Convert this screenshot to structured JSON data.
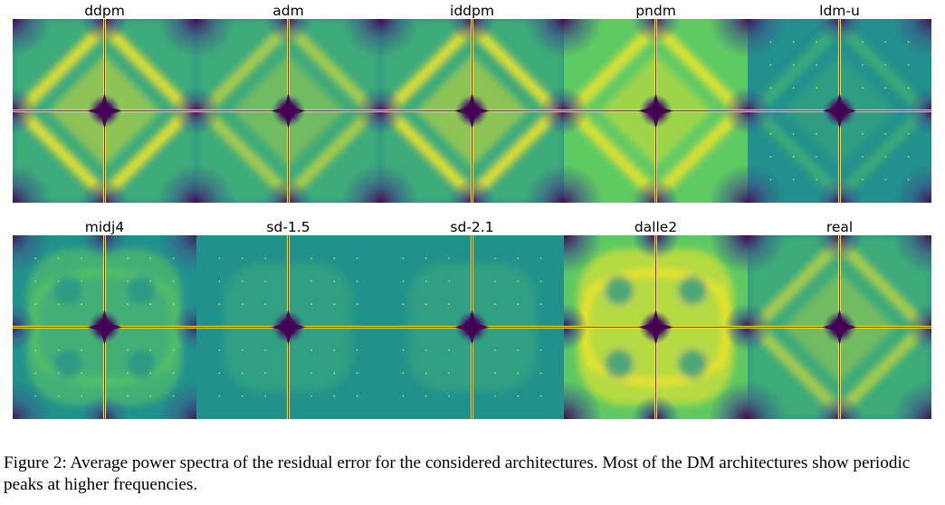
{
  "figure": {
    "panels": [
      {
        "title": "ddpm",
        "pattern": "diamond-strong",
        "peaks": false
      },
      {
        "title": "adm",
        "pattern": "diamond-medium",
        "peaks": false
      },
      {
        "title": "iddpm",
        "pattern": "diamond-strong",
        "peaks": false
      },
      {
        "title": "pndm",
        "pattern": "diamond-bright",
        "peaks": false
      },
      {
        "title": "ldm-u",
        "pattern": "diamond-faint",
        "peaks": true
      },
      {
        "title": "midj4",
        "pattern": "lobed",
        "peaks": true
      },
      {
        "title": "sd-1.5",
        "pattern": "flat-faint",
        "peaks": true
      },
      {
        "title": "sd-2.1",
        "pattern": "flat-faint",
        "peaks": true
      },
      {
        "title": "dalle2",
        "pattern": "lobed-bright",
        "peaks": false
      },
      {
        "title": "real",
        "pattern": "diamond-medium",
        "peaks": false
      }
    ],
    "colormap": [
      "#440154",
      "#3b528b",
      "#21918c",
      "#5ec962",
      "#fde725"
    ],
    "caption": "Figure 2: Average power spectra of the residual error for the considered architectures. Most of the DM architectures show periodic peaks at higher frequencies."
  }
}
